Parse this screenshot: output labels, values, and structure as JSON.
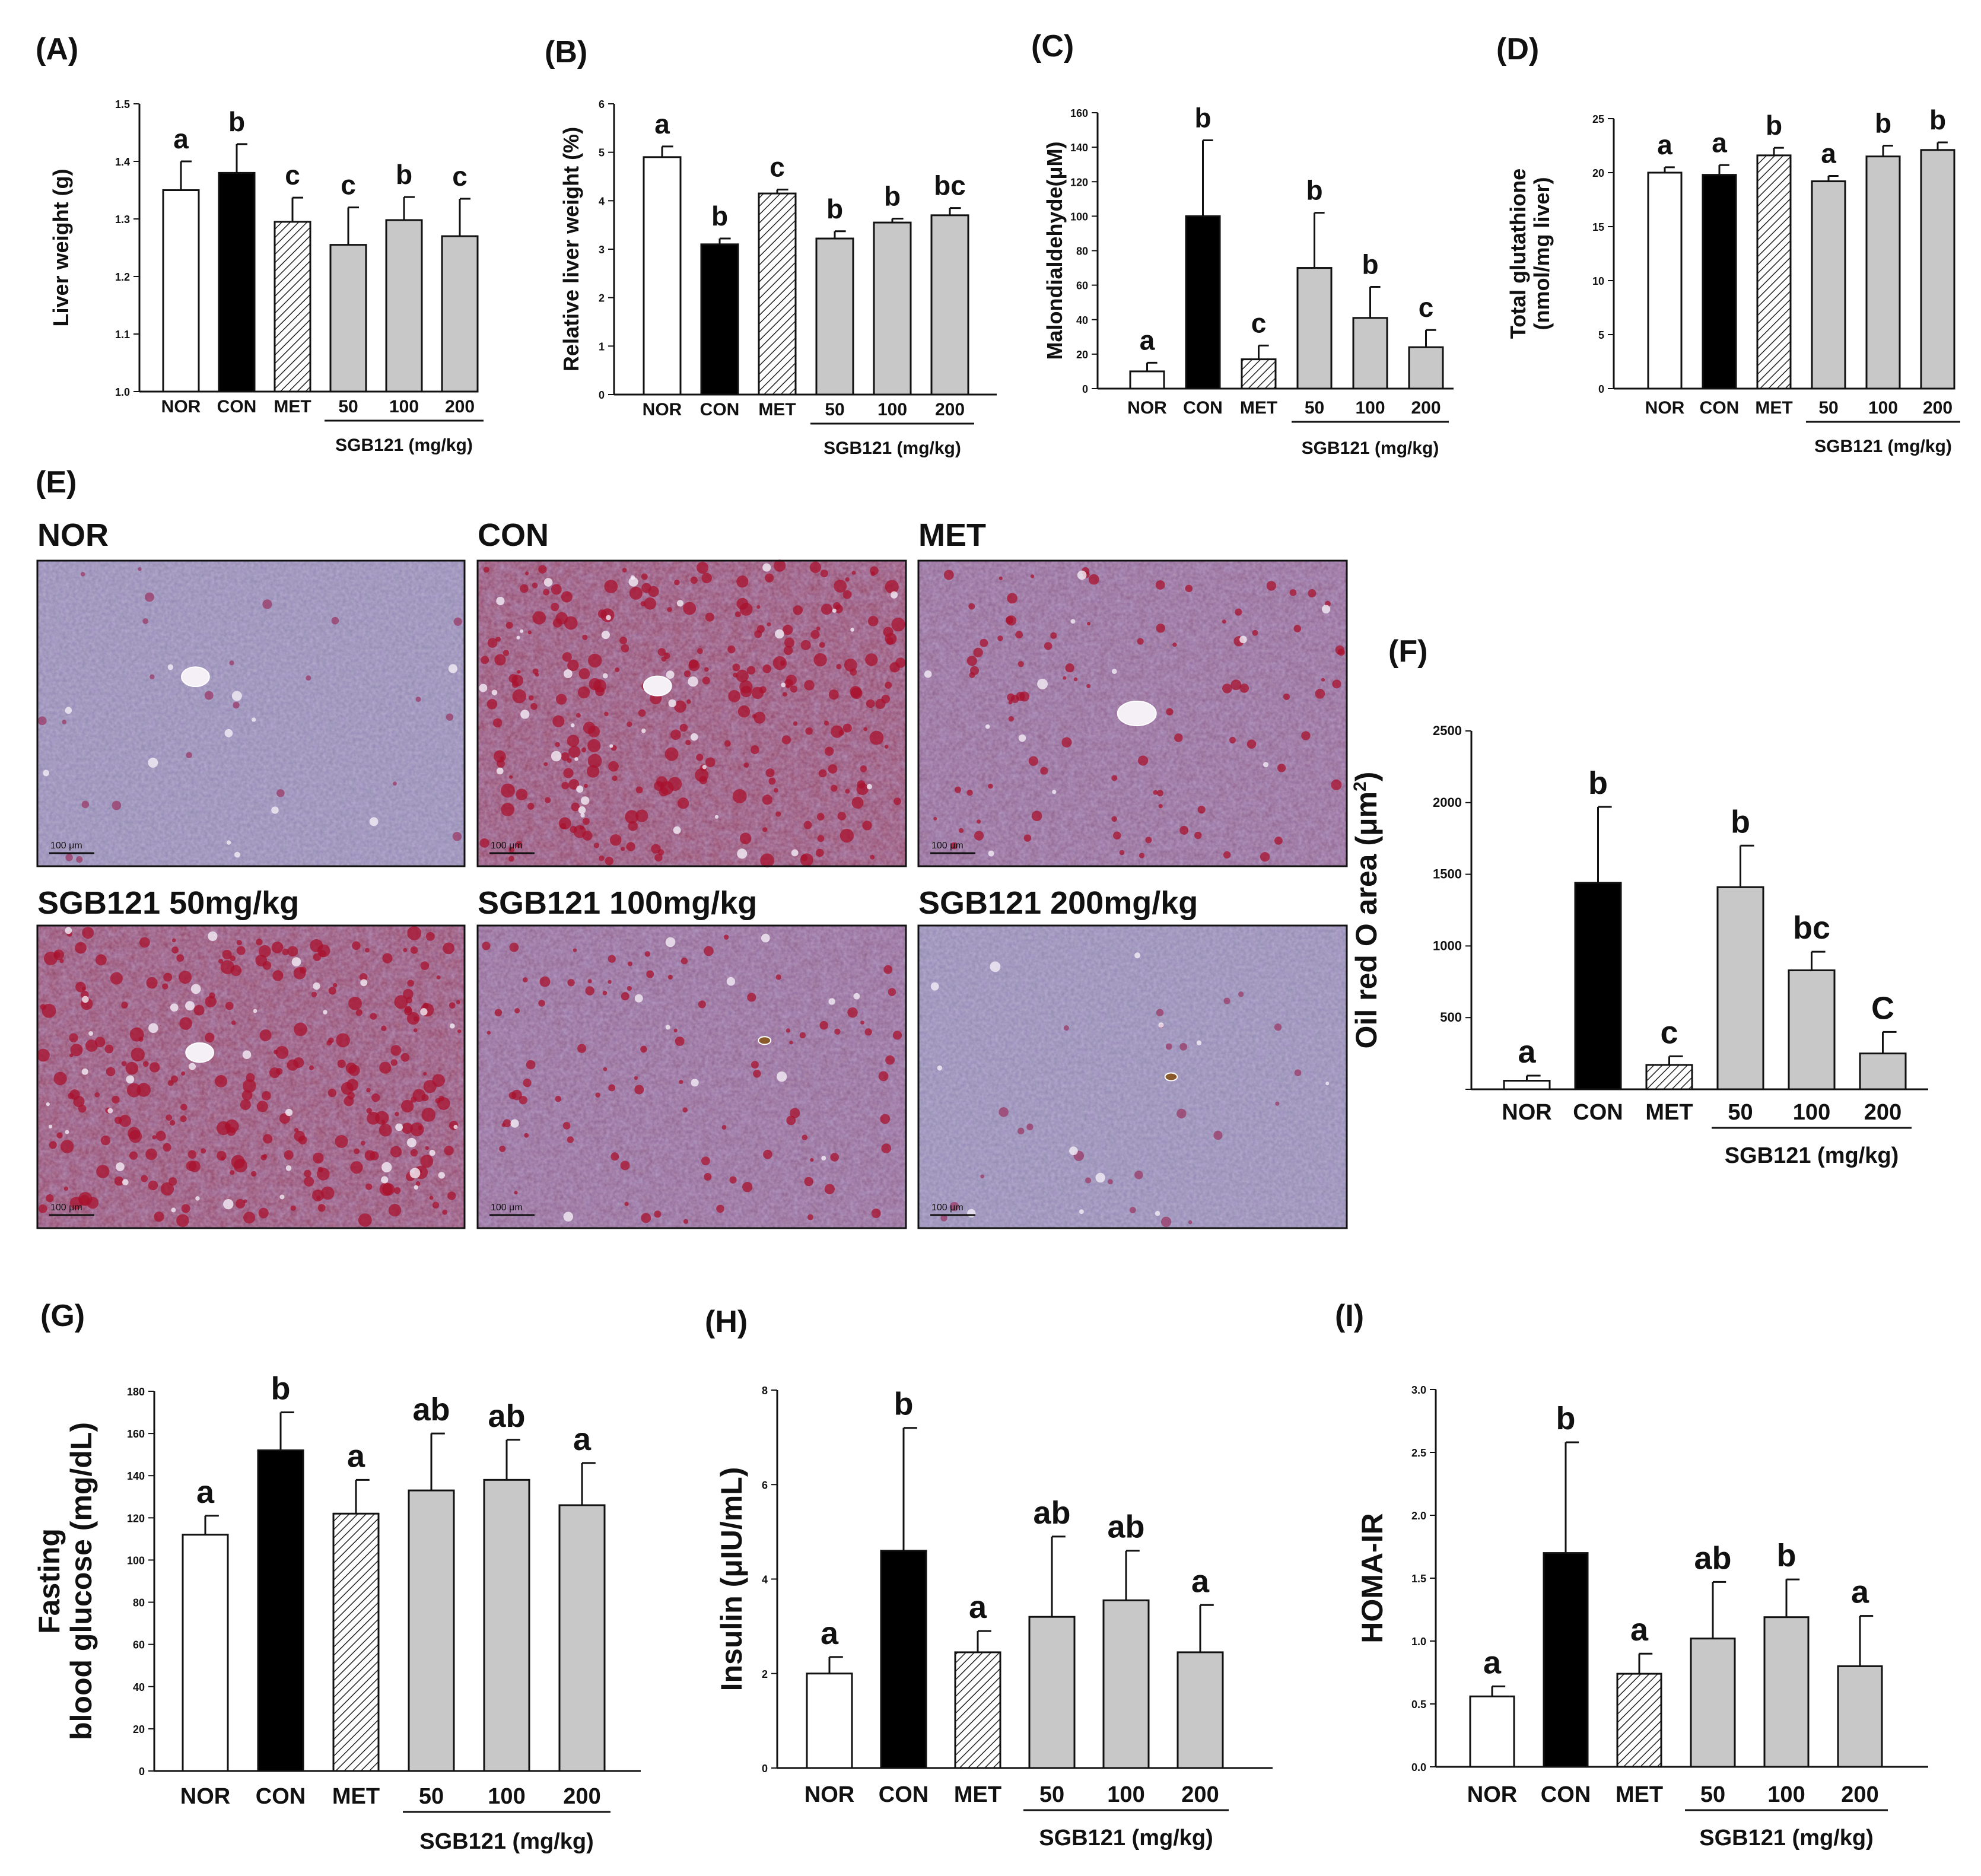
{
  "groups_label": "SGB121 (mg/kg)",
  "colors": {
    "NOR": "#ffffff",
    "CON": "#000000",
    "MET": "hatch",
    "SGB": "#c8c8c8"
  },
  "chart_data": [
    {
      "id": "A",
      "type": "bar",
      "panel_label": "(A)",
      "categories": [
        "NOR",
        "CON",
        "MET",
        "50",
        "100",
        "200"
      ],
      "values": [
        1.35,
        1.38,
        1.295,
        1.255,
        1.298,
        1.27
      ],
      "errors": [
        0.05,
        0.05,
        0.042,
        0.065,
        0.04,
        0.065
      ],
      "letters": [
        "a",
        "b",
        "c",
        "c",
        "b",
        "c"
      ],
      "ylabel": "Liver weight (g)",
      "ylim": [
        1.0,
        1.5
      ],
      "yticks": [
        "1.0",
        "1.1",
        "1.2",
        "1.3",
        "1.4",
        "1.5"
      ],
      "group_label": "SGB121 (mg/kg)"
    },
    {
      "id": "B",
      "type": "bar",
      "panel_label": "(B)",
      "categories": [
        "NOR",
        "CON",
        "MET",
        "50",
        "100",
        "200"
      ],
      "values": [
        4.9,
        3.1,
        4.15,
        3.22,
        3.55,
        3.7
      ],
      "errors": [
        0.22,
        0.12,
        0.08,
        0.15,
        0.08,
        0.15
      ],
      "letters": [
        "a",
        "b",
        "c",
        "b",
        "b",
        "bc"
      ],
      "ylabel": "Relative liver weight (%)",
      "ylim": [
        0,
        6
      ],
      "yticks": [
        "0",
        "1",
        "2",
        "3",
        "4",
        "5",
        "6"
      ],
      "group_label": "SGB121 (mg/kg)"
    },
    {
      "id": "C",
      "type": "bar",
      "panel_label": "(C)",
      "categories": [
        "NOR",
        "CON",
        "MET",
        "50",
        "100",
        "200"
      ],
      "values": [
        10,
        100,
        17,
        70,
        41,
        24
      ],
      "errors": [
        5,
        44,
        8,
        32,
        18,
        10
      ],
      "letters": [
        "a",
        "b",
        "c",
        "b",
        "b",
        "c"
      ],
      "ylabel": "Malondialdehyde(μM)",
      "ylim": [
        0,
        160
      ],
      "yticks": [
        "0",
        "20",
        "40",
        "60",
        "80",
        "100",
        "120",
        "140",
        "160"
      ],
      "group_label": "SGB121 (mg/kg)"
    },
    {
      "id": "D",
      "type": "bar",
      "panel_label": "(D)",
      "categories": [
        "NOR",
        "CON",
        "MET",
        "50",
        "100",
        "200"
      ],
      "values": [
        20.0,
        19.8,
        21.6,
        19.2,
        21.5,
        22.1
      ],
      "errors": [
        0.5,
        0.9,
        0.7,
        0.5,
        1.0,
        0.7
      ],
      "letters": [
        "a",
        "a",
        "b",
        "a",
        "b",
        "b"
      ],
      "ylabel": "Total glutathione",
      "ylabel2": "(nmol/mg liver)",
      "ylim": [
        0,
        25
      ],
      "yticks": [
        "0",
        "5",
        "10",
        "15",
        "20",
        "25"
      ],
      "group_label": "SGB121 (mg/kg)"
    },
    {
      "id": "F",
      "type": "bar",
      "panel_label": "(F)",
      "categories": [
        "NOR",
        "CON",
        "MET",
        "50",
        "100",
        "200"
      ],
      "values": [
        60,
        1440,
        170,
        1410,
        830,
        250
      ],
      "errors": [
        35,
        530,
        60,
        290,
        130,
        150
      ],
      "letters": [
        "a",
        "b",
        "c",
        "b",
        "bc",
        "C"
      ],
      "ylabel": "Oil red O area (μm",
      "ylabel_sup": "2",
      "ylabel_end": ")",
      "ylim": [
        0,
        2500
      ],
      "yticks": [
        "",
        "500",
        "1000",
        "1500",
        "2000",
        "2500"
      ],
      "group_label": "SGB121 (mg/kg)"
    },
    {
      "id": "G",
      "type": "bar",
      "panel_label": "(G)",
      "categories": [
        "NOR",
        "CON",
        "MET",
        "50",
        "100",
        "200"
      ],
      "values": [
        112,
        152,
        122,
        133,
        138,
        126
      ],
      "errors": [
        9,
        18,
        16,
        27,
        19,
        20
      ],
      "letters": [
        "a",
        "b",
        "a",
        "ab",
        "ab",
        "a"
      ],
      "ylabel": "Fasting",
      "ylabel2": "blood glucose (mg/dL)",
      "ylim": [
        0,
        180
      ],
      "yticks": [
        "0",
        "20",
        "40",
        "60",
        "80",
        "100",
        "120",
        "140",
        "160",
        "180"
      ],
      "group_label": "SGB121 (mg/kg)"
    },
    {
      "id": "H",
      "type": "bar",
      "panel_label": "(H)",
      "categories": [
        "NOR",
        "CON",
        "MET",
        "50",
        "100",
        "200"
      ],
      "values": [
        2.0,
        4.6,
        2.45,
        3.2,
        3.55,
        2.45
      ],
      "errors": [
        0.35,
        2.6,
        0.45,
        1.7,
        1.05,
        1.0
      ],
      "letters": [
        "a",
        "b",
        "a",
        "ab",
        "ab",
        "a"
      ],
      "ylabel": "Insulin (μIU/mL)",
      "ylim": [
        0,
        8
      ],
      "yticks": [
        "0",
        "2",
        "4",
        "6",
        "8"
      ],
      "group_label": "SGB121 (mg/kg)"
    },
    {
      "id": "I",
      "type": "bar",
      "panel_label": "(I)",
      "categories": [
        "NOR",
        "CON",
        "MET",
        "50",
        "100",
        "200"
      ],
      "values": [
        0.56,
        1.7,
        0.74,
        1.02,
        1.19,
        0.8
      ],
      "errors": [
        0.08,
        0.88,
        0.16,
        0.45,
        0.3,
        0.4
      ],
      "letters": [
        "a",
        "b",
        "a",
        "ab",
        "b",
        "a"
      ],
      "ylabel": "HOMA-IR",
      "ylim": [
        0,
        3
      ],
      "yticks": [
        "0.0",
        "0.5",
        "1.0",
        "1.5",
        "2.0",
        "2.5",
        "3.0"
      ],
      "group_label": "SGB121 (mg/kg)"
    }
  ],
  "histology": {
    "panel_label": "(E)",
    "scale_bar": "100 μm",
    "images": [
      {
        "title": "NOR",
        "lipid": "low"
      },
      {
        "title": "CON",
        "lipid": "high"
      },
      {
        "title": "MET",
        "lipid": "moderate"
      },
      {
        "title": "SGB121  50mg/kg",
        "lipid": "high"
      },
      {
        "title": "SGB121  100mg/kg",
        "lipid": "moderate"
      },
      {
        "title": "SGB121  200mg/kg",
        "lipid": "low"
      }
    ]
  }
}
